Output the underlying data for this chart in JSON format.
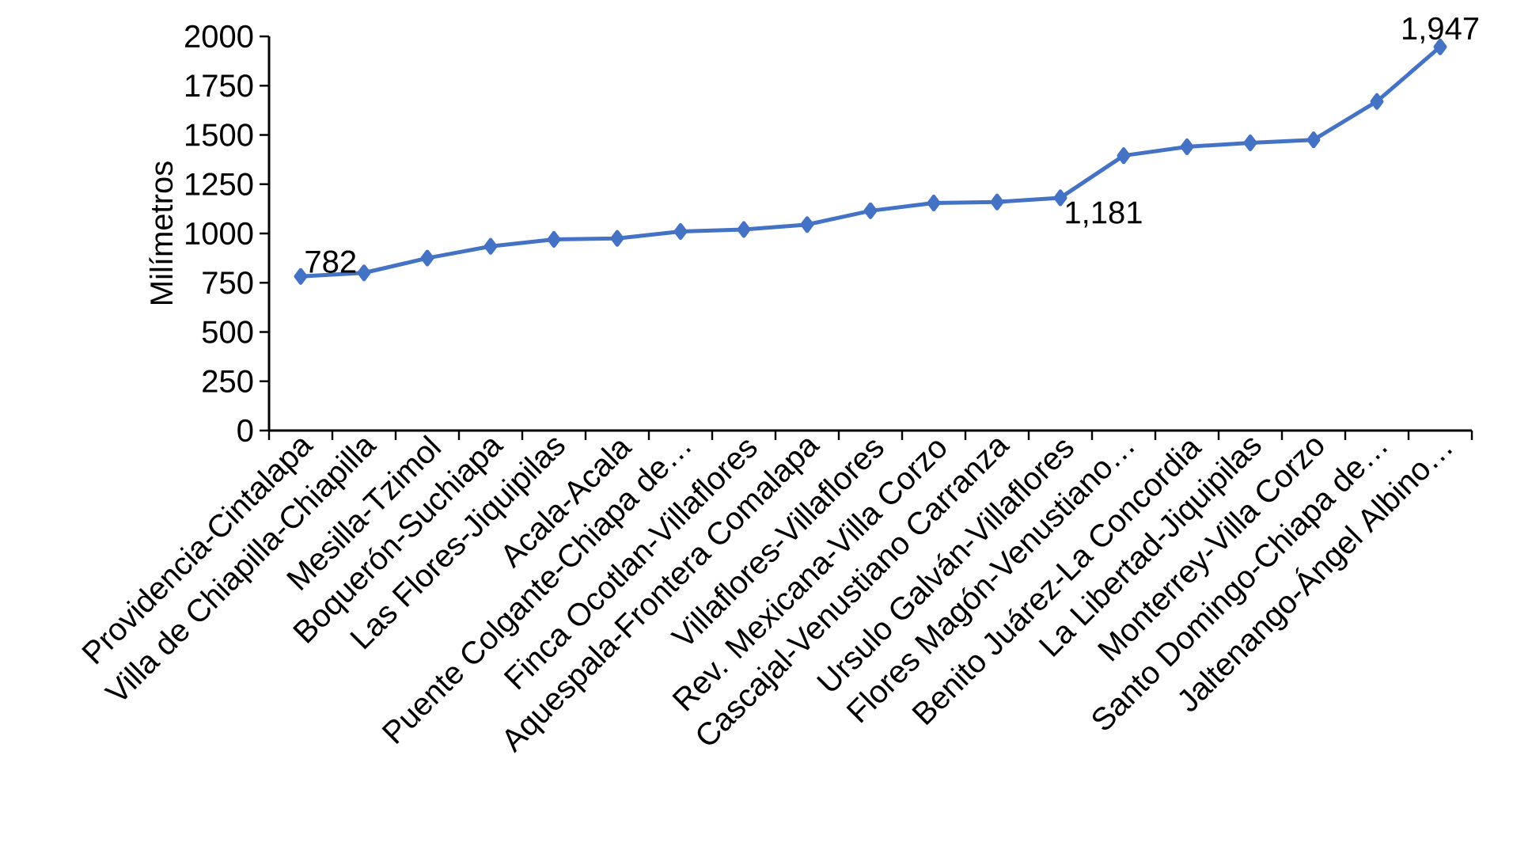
{
  "chart_data": {
    "type": "line",
    "ylabel": "Milímetros",
    "categories": [
      "Providencia-Cintalapa",
      "Villa de Chiapilla-Chiapilla",
      "Mesilla-Tzimol",
      "Boquerón-Suchiapa",
      "Las Flores-Jiquipilas",
      "Acala-Acala",
      "Puente Colgante-Chiapa de…",
      "Finca Ocotlan-Villaflores",
      "Aquespala-Frontera Comalapa",
      "Villaflores-Villaflores",
      "Rev. Mexicana-Villa Corzo",
      "Cascajal-Venustiano Carranza",
      "Ursulo Galván-Villaflores",
      "Flores Magón-Venustiano…",
      "Benito Juárez-La Concordia",
      "La Libertad-Jiquipilas",
      "Monterrey-Villa Corzo",
      "Santo Domingo-Chiapa de…",
      "Jaltenango-Ángel Albino…"
    ],
    "values": [
      782,
      800,
      875,
      935,
      970,
      975,
      1010,
      1020,
      1045,
      1115,
      1155,
      1160,
      1181,
      1395,
      1440,
      1460,
      1475,
      1670,
      1947
    ],
    "value_labels": [
      "782",
      null,
      null,
      null,
      null,
      null,
      null,
      null,
      null,
      null,
      null,
      null,
      "1,181",
      null,
      null,
      null,
      null,
      null,
      "1,947"
    ],
    "color": "#4472c4",
    "marker": "diamond",
    "line_style": "solid",
    "grid": false,
    "ylim": [
      0,
      2000
    ],
    "yticks": [
      0,
      250,
      500,
      750,
      1000,
      1250,
      1500,
      1750,
      2000
    ]
  }
}
